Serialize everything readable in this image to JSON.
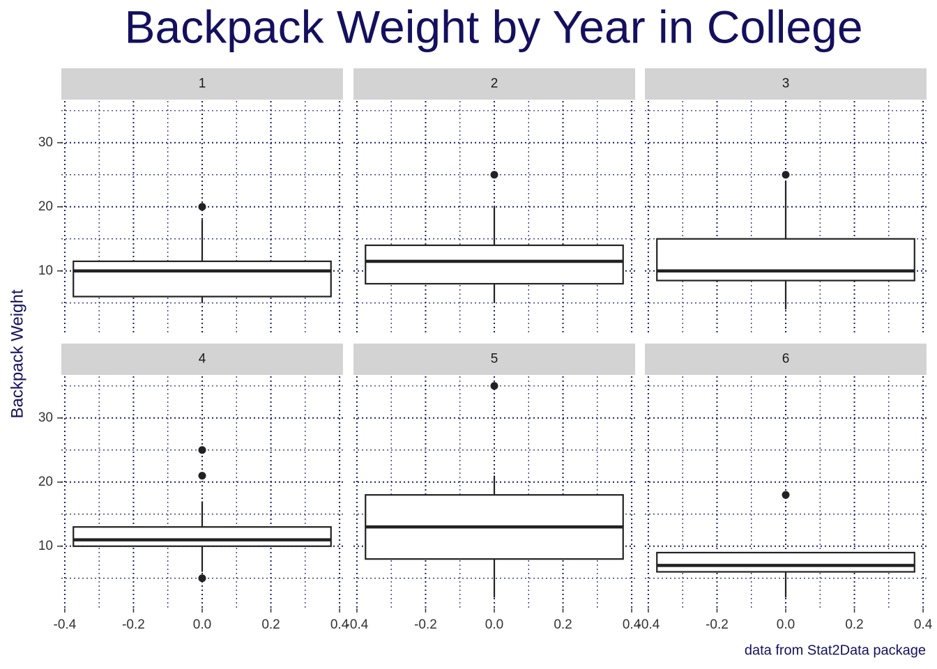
{
  "chart_data": {
    "type": "boxplot",
    "title": "Backpack Weight by Year in College",
    "ylabel": "Backpack Weight",
    "caption": "data from Stat2Data package",
    "xlim": [
      -0.41,
      0.41
    ],
    "xticks": [
      {
        "value": -0.4,
        "label": "-0.4"
      },
      {
        "value": -0.2,
        "label": "-0.2"
      },
      {
        "value": 0,
        "label": "0.0"
      },
      0.2,
      0.4
    ],
    "minor_xticks": [
      -0.3,
      -0.1,
      0.1,
      0.3
    ],
    "ylim": [
      0.3,
      36.5
    ],
    "yticks": [
      10,
      20,
      30
    ],
    "minor_yticks": [
      5,
      15,
      25,
      35
    ],
    "grid": true,
    "grid_color": "#1a1a6e",
    "box_width": 0.75,
    "color": "#222222",
    "panels": [
      {
        "name": "1",
        "min": 5,
        "q1": 6,
        "median": 10,
        "q3": 11.5,
        "max": 18,
        "outliers": [
          20
        ]
      },
      {
        "name": "2",
        "min": 5,
        "q1": 8,
        "median": 11.5,
        "q3": 14,
        "max": 20,
        "outliers": [
          25
        ]
      },
      {
        "name": "3",
        "min": 4,
        "q1": 8.5,
        "median": 10,
        "q3": 15,
        "max": 24,
        "outliers": [
          25
        ]
      },
      {
        "name": "4",
        "min": 6,
        "q1": 10,
        "median": 11,
        "q3": 13,
        "max": 17,
        "outliers": [
          5,
          21,
          25
        ]
      },
      {
        "name": "5",
        "min": 2,
        "q1": 8,
        "median": 13,
        "q3": 18,
        "max": 21,
        "outliers": [
          35
        ]
      },
      {
        "name": "6",
        "min": 2,
        "q1": 6,
        "median": 7,
        "q3": 9,
        "max": 9,
        "outliers": [
          18
        ]
      }
    ]
  }
}
